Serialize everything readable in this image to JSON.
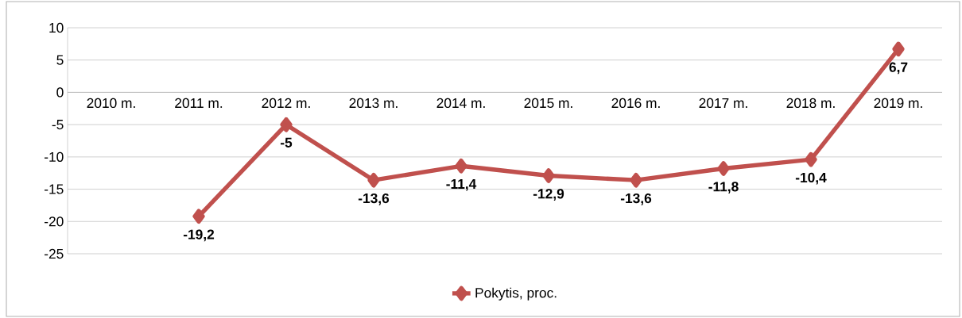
{
  "chart_data": {
    "type": "line",
    "categories": [
      "2010 m.",
      "2011 m.",
      "2012 m.",
      "2013 m.",
      "2014 m.",
      "2015 m.",
      "2016 m.",
      "2017 m.",
      "2018 m.",
      "2019 m."
    ],
    "series": [
      {
        "name": "Pokytis, proc.",
        "color": "#c0504d",
        "values": [
          null,
          -19.2,
          -5,
          -13.6,
          -11.4,
          -12.9,
          -13.6,
          -11.8,
          -10.4,
          6.7
        ],
        "value_labels": [
          null,
          "-19,2",
          "-5",
          "-13,6",
          "-11,4",
          "-12,9",
          "-13,6",
          "-11,8",
          "-10,4",
          "6,7"
        ]
      }
    ],
    "ylim": [
      -25,
      10
    ],
    "yticks": [
      -25,
      -20,
      -15,
      -10,
      -5,
      0,
      5,
      10
    ],
    "grid": "y",
    "legend": "bottom",
    "marker": "diamond",
    "line_style": "solid"
  }
}
